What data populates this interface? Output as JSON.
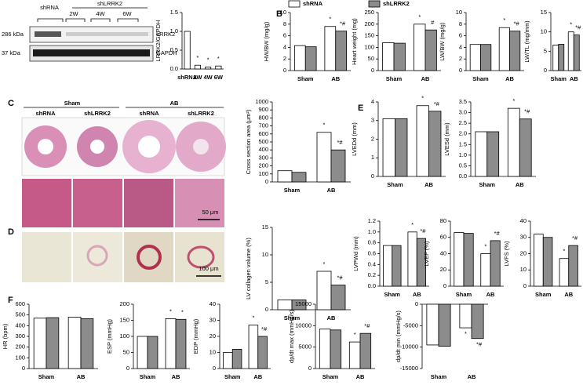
{
  "panel_labels": [
    "B",
    "C",
    "D",
    "E",
    "F"
  ],
  "legend": [
    {
      "name": "shRNA",
      "color": "#ffffff"
    },
    {
      "name": "shLRRK2",
      "color": "#8c8c8c"
    }
  ],
  "blot": {
    "groups": [
      "shRNA",
      "shLRRK2"
    ],
    "timepoints": [
      "2W",
      "4W",
      "6W"
    ],
    "sizes": [
      "286 kDa",
      "37 kDa"
    ],
    "proteins": [
      "LRRK2",
      "GAPDH"
    ]
  },
  "histology": {
    "groups": [
      "Sham",
      "AB"
    ],
    "subgroups": [
      "shRNA",
      "shLRRK2",
      "shRNA",
      "shLRRK2"
    ],
    "scale_bars": [
      "50 μm",
      "100 μm"
    ]
  },
  "chart_data": [
    {
      "type": "bar",
      "ylabel": "LRRK2/GAPDH",
      "categories": [
        "shRNA",
        "2W",
        "4W",
        "6W"
      ],
      "values": [
        1.0,
        0.1,
        0.05,
        0.08
      ],
      "color": "#ffffff",
      "annotations": [
        null,
        "*",
        "*",
        "*"
      ],
      "ylim": [
        0,
        1.5
      ],
      "yticks": [
        {
          "value": 0,
          "label": "0.0"
        },
        0.5,
        {
          "value": 1,
          "label": "1.0"
        },
        1.5
      ]
    },
    {
      "type": "bar",
      "ylabel": "HW/BW (mg/g)",
      "categories": [
        "Sham",
        "AB"
      ],
      "series": [
        {
          "color": "#ffffff",
          "values": [
            4.3,
            7.6
          ],
          "annotations": [
            null,
            "*"
          ]
        },
        {
          "color": "#8c8c8c",
          "values": [
            4.1,
            6.8
          ],
          "annotations": [
            null,
            "*#"
          ]
        }
      ],
      "ylim": [
        0,
        10
      ],
      "yticks": [
        0,
        2,
        4,
        6,
        8,
        10
      ]
    },
    {
      "type": "bar",
      "ylabel": "Heart weight (mg)",
      "categories": [
        "Sham",
        "AB"
      ],
      "series": [
        {
          "color": "#ffffff",
          "values": [
            120,
            200
          ],
          "annotations": [
            null,
            "*"
          ]
        },
        {
          "color": "#8c8c8c",
          "values": [
            118,
            175
          ],
          "annotations": [
            null,
            "#"
          ]
        }
      ],
      "ylim": [
        0,
        250
      ],
      "yticks": [
        0,
        50,
        100,
        150,
        200,
        250
      ]
    },
    {
      "type": "bar",
      "ylabel": "LW/BW (mg/g)",
      "categories": [
        "Sham",
        "AB"
      ],
      "series": [
        {
          "color": "#ffffff",
          "values": [
            4.5,
            7.4
          ],
          "annotations": [
            null,
            "*"
          ]
        },
        {
          "color": "#8c8c8c",
          "values": [
            4.5,
            6.8
          ],
          "annotations": [
            null,
            "*#"
          ]
        }
      ],
      "ylim": [
        0,
        10
      ],
      "yticks": [
        0,
        2,
        4,
        6,
        8,
        10
      ]
    },
    {
      "type": "bar",
      "ylabel": "LW/TL (mg/mm)",
      "categories": [
        "Sham",
        "AB"
      ],
      "series": [
        {
          "color": "#ffffff",
          "values": [
            6.6,
            10.0
          ],
          "annotations": [
            null,
            "*"
          ]
        },
        {
          "color": "#8c8c8c",
          "values": [
            6.8,
            9.2
          ],
          "annotations": [
            null,
            "*#"
          ]
        }
      ],
      "ylim": [
        0,
        15
      ],
      "yticks": [
        0,
        5,
        10,
        15
      ]
    },
    {
      "type": "bar",
      "ylabel": "Cross section area (μm²)",
      "categories": [
        "Sham",
        "AB"
      ],
      "series": [
        {
          "color": "#ffffff",
          "values": [
            140,
            620
          ],
          "annotations": [
            null,
            "*"
          ]
        },
        {
          "color": "#8c8c8c",
          "values": [
            120,
            400
          ],
          "annotations": [
            null,
            "*#"
          ]
        }
      ],
      "ylim": [
        0,
        1000
      ],
      "yticks": [
        0,
        100,
        200,
        300,
        400,
        500,
        600,
        700,
        800,
        900,
        1000
      ]
    },
    {
      "type": "bar",
      "ylabel": "LV collagen volume (%)",
      "categories": [
        "Sham",
        "AB"
      ],
      "series": [
        {
          "color": "#ffffff",
          "values": [
            1.8,
            7.0
          ],
          "annotations": [
            null,
            "*"
          ]
        },
        {
          "color": "#8c8c8c",
          "values": [
            1.8,
            4.5
          ],
          "annotations": [
            null,
            "*#"
          ]
        }
      ],
      "ylim": [
        0,
        15
      ],
      "yticks": [
        0,
        5,
        10,
        15
      ]
    },
    {
      "type": "bar",
      "ylabel": "LVEDd (mm)",
      "categories": [
        "Sham",
        "AB"
      ],
      "series": [
        {
          "color": "#ffffff",
          "values": [
            3.1,
            3.8
          ],
          "annotations": [
            null,
            "*"
          ]
        },
        {
          "color": "#8c8c8c",
          "values": [
            3.1,
            3.5
          ],
          "annotations": [
            null,
            "*#"
          ]
        }
      ],
      "ylim": [
        0,
        4
      ],
      "yticks": [
        0,
        1,
        2,
        3,
        4
      ]
    },
    {
      "type": "bar",
      "ylabel": "LVESd (mm)",
      "categories": [
        "Sham",
        "AB"
      ],
      "series": [
        {
          "color": "#ffffff",
          "values": [
            2.1,
            3.2
          ],
          "annotations": [
            null,
            "*"
          ]
        },
        {
          "color": "#8c8c8c",
          "values": [
            2.1,
            2.7
          ],
          "annotations": [
            null,
            "*#"
          ]
        }
      ],
      "ylim": [
        0,
        3.5
      ],
      "yticks": [
        {
          "value": 0,
          "label": "0.0"
        },
        0.5,
        {
          "value": 1,
          "label": "1.0"
        },
        1.5,
        {
          "value": 2,
          "label": "2.0"
        },
        2.5,
        {
          "value": 3,
          "label": "3.0"
        },
        3.5
      ]
    },
    {
      "type": "bar",
      "ylabel": "LVPWd (mm)",
      "categories": [
        "Sham",
        "AB"
      ],
      "series": [
        {
          "color": "#ffffff",
          "values": [
            0.75,
            1.0
          ],
          "annotations": [
            null,
            "*"
          ]
        },
        {
          "color": "#8c8c8c",
          "values": [
            0.75,
            0.88
          ],
          "annotations": [
            null,
            "*#"
          ]
        }
      ],
      "ylim": [
        0,
        1.2
      ],
      "yticks": [
        {
          "value": 0,
          "label": "0.0"
        },
        0.2,
        0.4,
        0.6,
        0.8,
        {
          "value": 1,
          "label": "1.0"
        },
        1.2
      ]
    },
    {
      "type": "bar",
      "ylabel": "LVEF (%)",
      "categories": [
        "Sham",
        "AB"
      ],
      "series": [
        {
          "color": "#ffffff",
          "values": [
            66,
            40
          ],
          "annotations": [
            null,
            "*"
          ]
        },
        {
          "color": "#8c8c8c",
          "values": [
            65,
            56
          ],
          "annotations": [
            null,
            "*#"
          ]
        }
      ],
      "ylim": [
        0,
        80
      ],
      "yticks": [
        0,
        20,
        40,
        60,
        80
      ]
    },
    {
      "type": "bar",
      "ylabel": "LVFS (%)",
      "categories": [
        "Sham",
        "AB"
      ],
      "series": [
        {
          "color": "#ffffff",
          "values": [
            32,
            17
          ],
          "annotations": [
            null,
            "*"
          ]
        },
        {
          "color": "#8c8c8c",
          "values": [
            30,
            25
          ],
          "annotations": [
            null,
            "*#"
          ]
        }
      ],
      "ylim": [
        0,
        40
      ],
      "yticks": [
        0,
        10,
        20,
        30,
        40
      ]
    },
    {
      "type": "bar",
      "ylabel": "HR (bpm)",
      "categories": [
        "Sham",
        "AB"
      ],
      "series": [
        {
          "color": "#ffffff",
          "values": [
            470,
            480
          ],
          "annotations": [
            null,
            null
          ]
        },
        {
          "color": "#8c8c8c",
          "values": [
            475,
            465
          ],
          "annotations": [
            null,
            null
          ]
        }
      ],
      "ylim": [
        0,
        600
      ],
      "yticks": [
        0,
        100,
        200,
        300,
        400,
        500,
        600
      ]
    },
    {
      "type": "bar",
      "ylabel": "ESP (mmHg)",
      "categories": [
        "Sham",
        "AB"
      ],
      "series": [
        {
          "color": "#ffffff",
          "values": [
            100,
            155
          ],
          "annotations": [
            null,
            "*"
          ]
        },
        {
          "color": "#8c8c8c",
          "values": [
            100,
            153
          ],
          "annotations": [
            null,
            "*"
          ]
        }
      ],
      "ylim": [
        0,
        200
      ],
      "yticks": [
        0,
        50,
        100,
        150,
        200
      ]
    },
    {
      "type": "bar",
      "ylabel": "EDP (mmHg)",
      "categories": [
        "Sham",
        "AB"
      ],
      "series": [
        {
          "color": "#ffffff",
          "values": [
            10,
            27
          ],
          "annotations": [
            null,
            "*"
          ]
        },
        {
          "color": "#8c8c8c",
          "values": [
            12,
            20
          ],
          "annotations": [
            null,
            "*#"
          ]
        }
      ],
      "ylim": [
        0,
        40
      ],
      "yticks": [
        0,
        10,
        20,
        30,
        40
      ]
    },
    {
      "type": "bar",
      "ylabel": "dp/dt max (mmHg/s)",
      "categories": [
        "Sham",
        "AB"
      ],
      "series": [
        {
          "color": "#ffffff",
          "values": [
            9200,
            6200
          ],
          "annotations": [
            null,
            "*"
          ]
        },
        {
          "color": "#8c8c8c",
          "values": [
            9000,
            8200
          ],
          "annotations": [
            null,
            "*#"
          ]
        }
      ],
      "ylim": [
        0,
        15000
      ],
      "yticks": [
        0,
        5000,
        10000,
        15000
      ]
    },
    {
      "type": "bar",
      "ylabel": "dp/dt min (mmHg/s)",
      "categories": [
        "Sham",
        "AB"
      ],
      "series": [
        {
          "color": "#ffffff",
          "values": [
            -9500,
            -5500
          ],
          "annotations": [
            null,
            "*"
          ]
        },
        {
          "color": "#8c8c8c",
          "values": [
            -9800,
            -8000
          ],
          "annotations": [
            null,
            "*#"
          ]
        }
      ],
      "ylim": [
        -15000,
        0
      ],
      "yticks": [
        0,
        -5000,
        -10000,
        -15000
      ]
    }
  ]
}
